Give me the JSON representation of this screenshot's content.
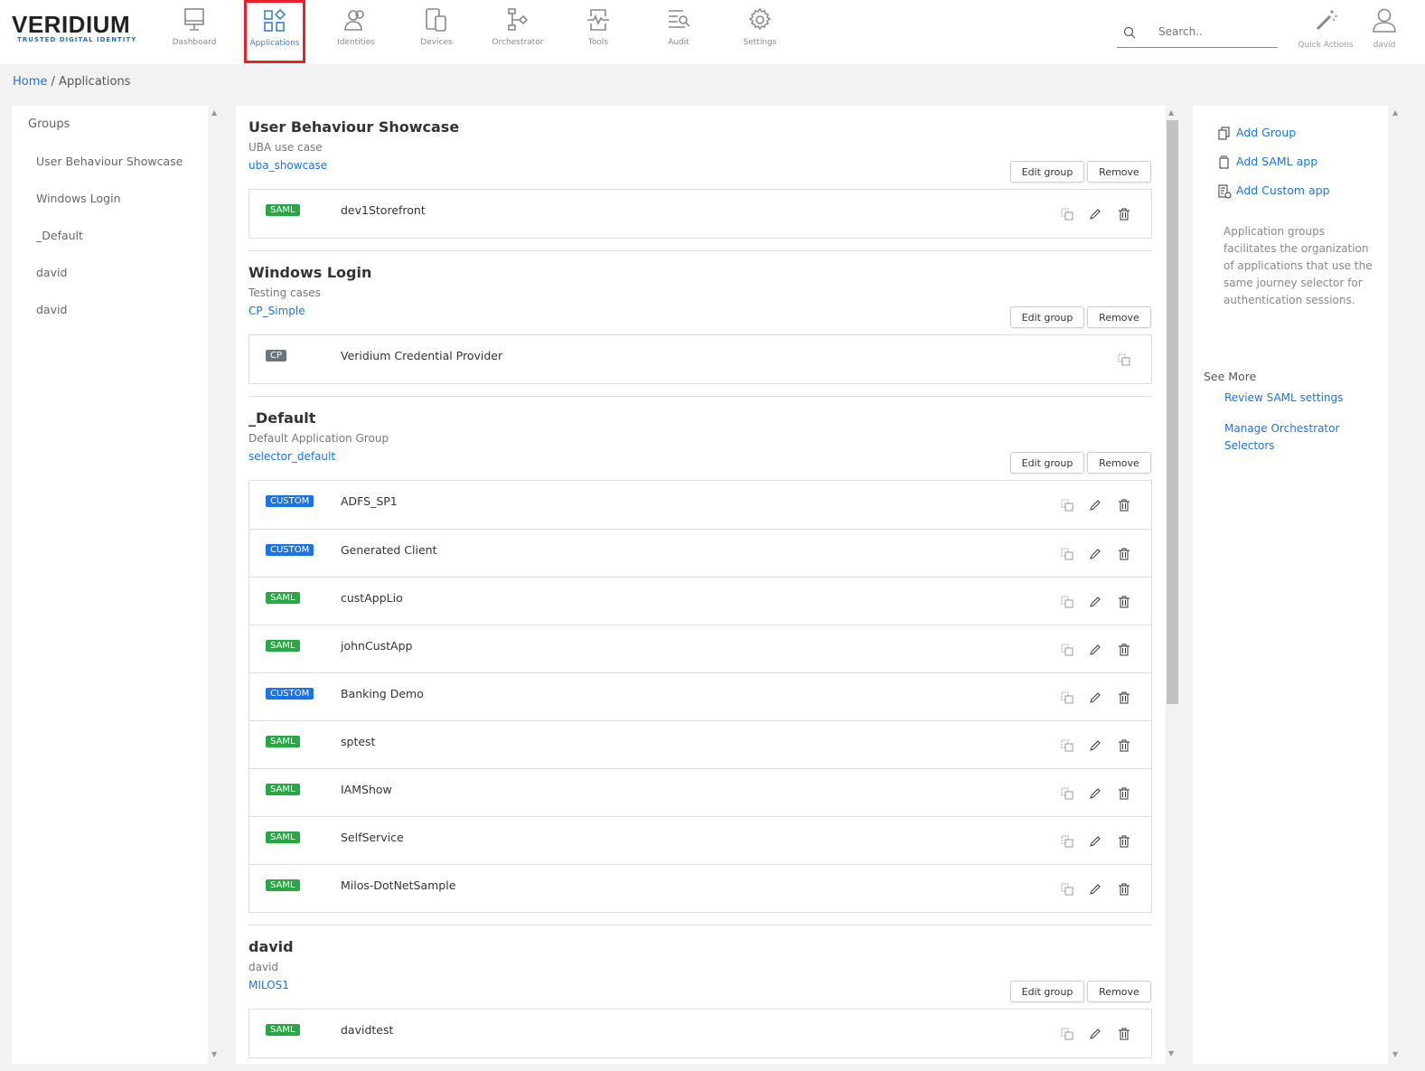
{
  "brand": {
    "name": "VERIDIUM",
    "tagline": "TRUSTED DIGITAL IDENTITY"
  },
  "nav": [
    {
      "label": "Dashboard",
      "icon": "monitor-icon"
    },
    {
      "label": "Applications",
      "icon": "apps-grid-icon",
      "active": true
    },
    {
      "label": "Identities",
      "icon": "users-icon"
    },
    {
      "label": "Devices",
      "icon": "devices-icon"
    },
    {
      "label": "Orchestrator",
      "icon": "flow-icon"
    },
    {
      "label": "Tools",
      "icon": "pulse-icon"
    },
    {
      "label": "Audit",
      "icon": "audit-search-icon"
    },
    {
      "label": "Settings",
      "icon": "gear-icon"
    }
  ],
  "search": {
    "placeholder": "Search.."
  },
  "quick_actions": "Quick Actions",
  "user": "david",
  "breadcrumb": {
    "home": "Home",
    "current": "Applications"
  },
  "sidebar": {
    "heading": "Groups",
    "items": [
      "User Behaviour Showcase",
      "Windows Login",
      "_Default",
      "david",
      "david"
    ]
  },
  "buttons": {
    "edit": "Edit group",
    "remove": "Remove"
  },
  "colors": {
    "accent": "#1a73e8",
    "saml": "#28a745",
    "custom": "#1a73e8",
    "cp": "#6c757d",
    "active_highlight": "#e8202a"
  },
  "groups": [
    {
      "title": "User Behaviour Showcase",
      "description": "UBA use case",
      "selector": "uba_showcase",
      "apps": [
        {
          "type": "SAML",
          "name": "dev1Storefront"
        }
      ]
    },
    {
      "title": "Windows Login",
      "description": "Testing cases",
      "selector": "CP_Simple",
      "apps": [
        {
          "type": "CP",
          "name": "Veridium Credential Provider",
          "copy_only": true
        }
      ]
    },
    {
      "title": "_Default",
      "description": "Default Application Group",
      "selector": "selector_default",
      "apps": [
        {
          "type": "CUSTOM",
          "name": "ADFS_SP1"
        },
        {
          "type": "CUSTOM",
          "name": "Generated Client"
        },
        {
          "type": "SAML",
          "name": "custAppLio"
        },
        {
          "type": "SAML",
          "name": "johnCustApp"
        },
        {
          "type": "CUSTOM",
          "name": "Banking Demo"
        },
        {
          "type": "SAML",
          "name": "sptest"
        },
        {
          "type": "SAML",
          "name": "IAMShow"
        },
        {
          "type": "SAML",
          "name": "SelfService"
        },
        {
          "type": "SAML",
          "name": "Milos-DotNetSample"
        }
      ]
    },
    {
      "title": "david",
      "description": "david",
      "selector": "MILOS1",
      "apps": [
        {
          "type": "SAML",
          "name": "davidtest"
        }
      ]
    }
  ],
  "right": {
    "actions": [
      "Add Group",
      "Add SAML app",
      "Add Custom app"
    ],
    "description": "Application groups facilitates the organization of applications that use the same journey selector for authentication sessions.",
    "see_more": "See More",
    "links": [
      "Review SAML settings",
      "Manage Orchestrator Selectors"
    ]
  }
}
